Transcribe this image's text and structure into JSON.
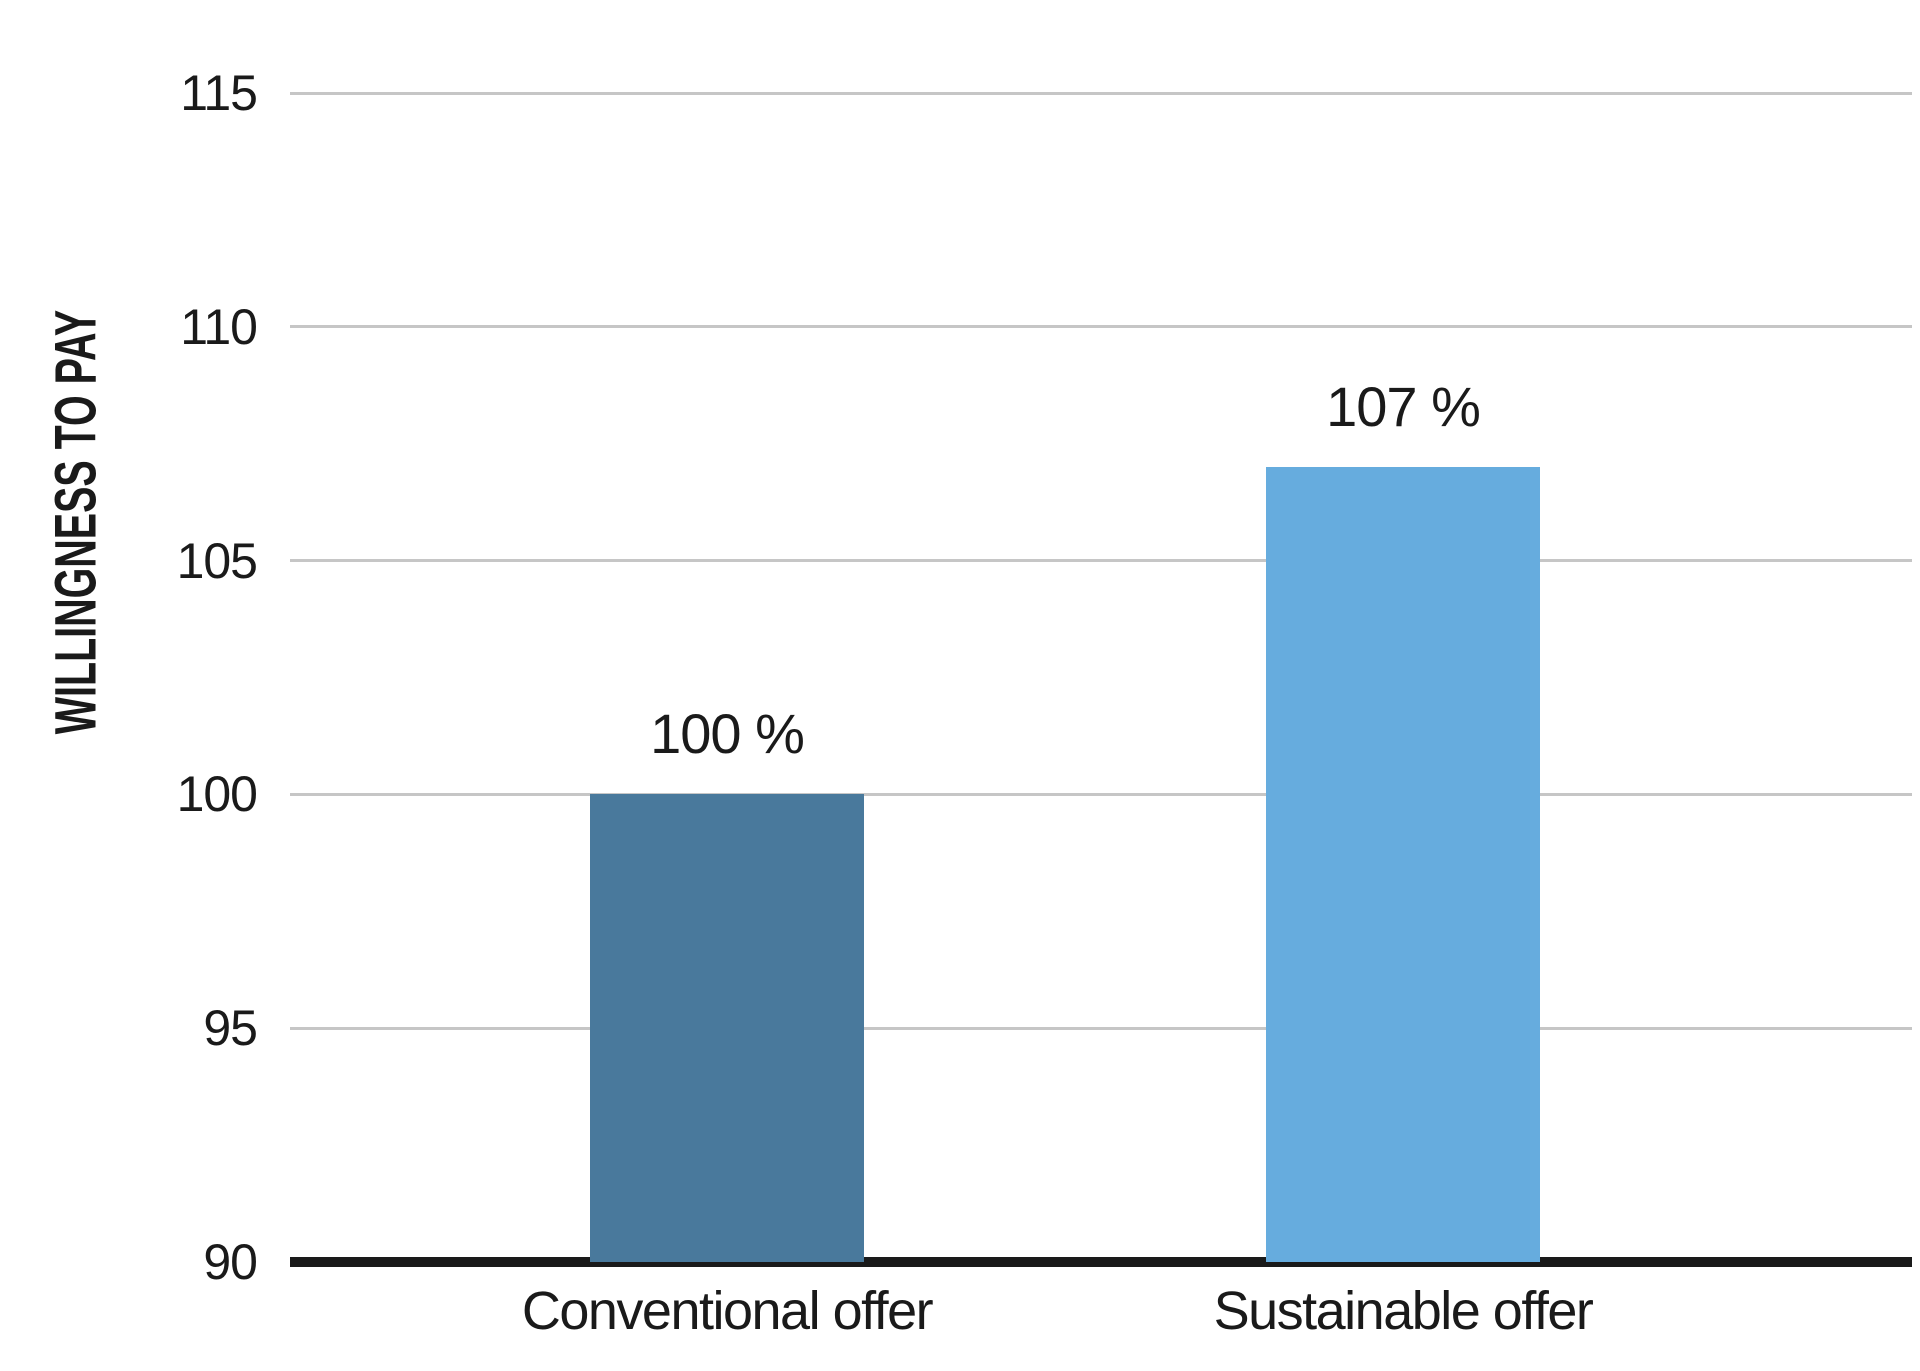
{
  "chart_data": {
    "type": "bar",
    "title": "",
    "xlabel": "",
    "ylabel": "WILLINGNESS TO PAY",
    "categories": [
      "Conventional offer",
      "Sustainable offer"
    ],
    "values": [
      100,
      107
    ],
    "value_labels": [
      "100 %",
      "107 %"
    ],
    "ylim": [
      90,
      115
    ],
    "yticks": [
      90,
      95,
      100,
      105,
      110,
      115
    ],
    "grid": "horizontal-only",
    "legend": "none",
    "bar_colors": [
      "#49799C",
      "#66ACDE"
    ]
  },
  "colors": {
    "background": "#FFFFFF",
    "gridline": "#C6C6C6",
    "axis_line": "#1A1A1A",
    "text": "#1A1A1A",
    "bar_conventional": "#49799C",
    "bar_sustainable": "#66ACDE"
  }
}
